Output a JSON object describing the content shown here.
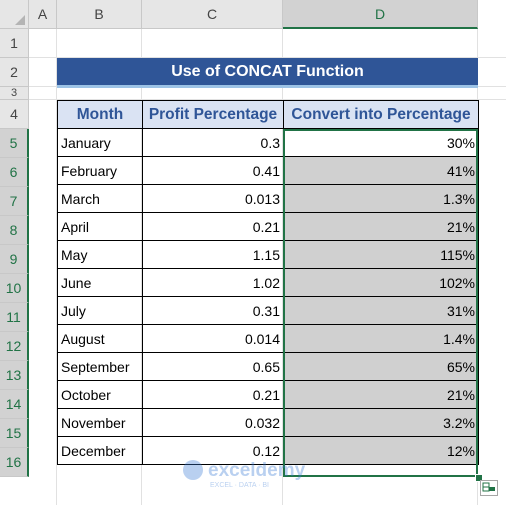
{
  "columns": [
    "A",
    "B",
    "C",
    "D"
  ],
  "rows": [
    "1",
    "2",
    "3",
    "4",
    "5",
    "6",
    "7",
    "8",
    "9",
    "10",
    "11",
    "12",
    "13",
    "14",
    "15",
    "16"
  ],
  "title": "Use of CONCAT Function",
  "headers": {
    "month": "Month",
    "profit": "Profit Percentage",
    "convert": "Convert into Percentage"
  },
  "data": [
    {
      "month": "January",
      "profit": "0.3",
      "convert": "30%"
    },
    {
      "month": "February",
      "profit": "0.41",
      "convert": "41%"
    },
    {
      "month": "March",
      "profit": "0.013",
      "convert": "1.3%"
    },
    {
      "month": "April",
      "profit": "0.21",
      "convert": "21%"
    },
    {
      "month": "May",
      "profit": "1.15",
      "convert": "115%"
    },
    {
      "month": "June",
      "profit": "1.02",
      "convert": "102%"
    },
    {
      "month": "July",
      "profit": "0.31",
      "convert": "31%"
    },
    {
      "month": "August",
      "profit": "0.014",
      "convert": "1.4%"
    },
    {
      "month": "September",
      "profit": "0.65",
      "convert": "65%"
    },
    {
      "month": "October",
      "profit": "0.21",
      "convert": "21%"
    },
    {
      "month": "November",
      "profit": "0.032",
      "convert": "3.2%"
    },
    {
      "month": "December",
      "profit": "0.12",
      "convert": "12%"
    }
  ],
  "watermark": {
    "brand": "exceldemy",
    "tagline": "EXCEL · DATA · BI"
  },
  "colors": {
    "title_bg": "#2f5597",
    "header_bg": "#dae3f3",
    "header_text": "#2f5597",
    "selection": "#217346",
    "selected_fill": "#d0d0d0"
  },
  "icons": {
    "corner": "select-all-icon",
    "flash_fill": "flash-fill-options-icon"
  }
}
